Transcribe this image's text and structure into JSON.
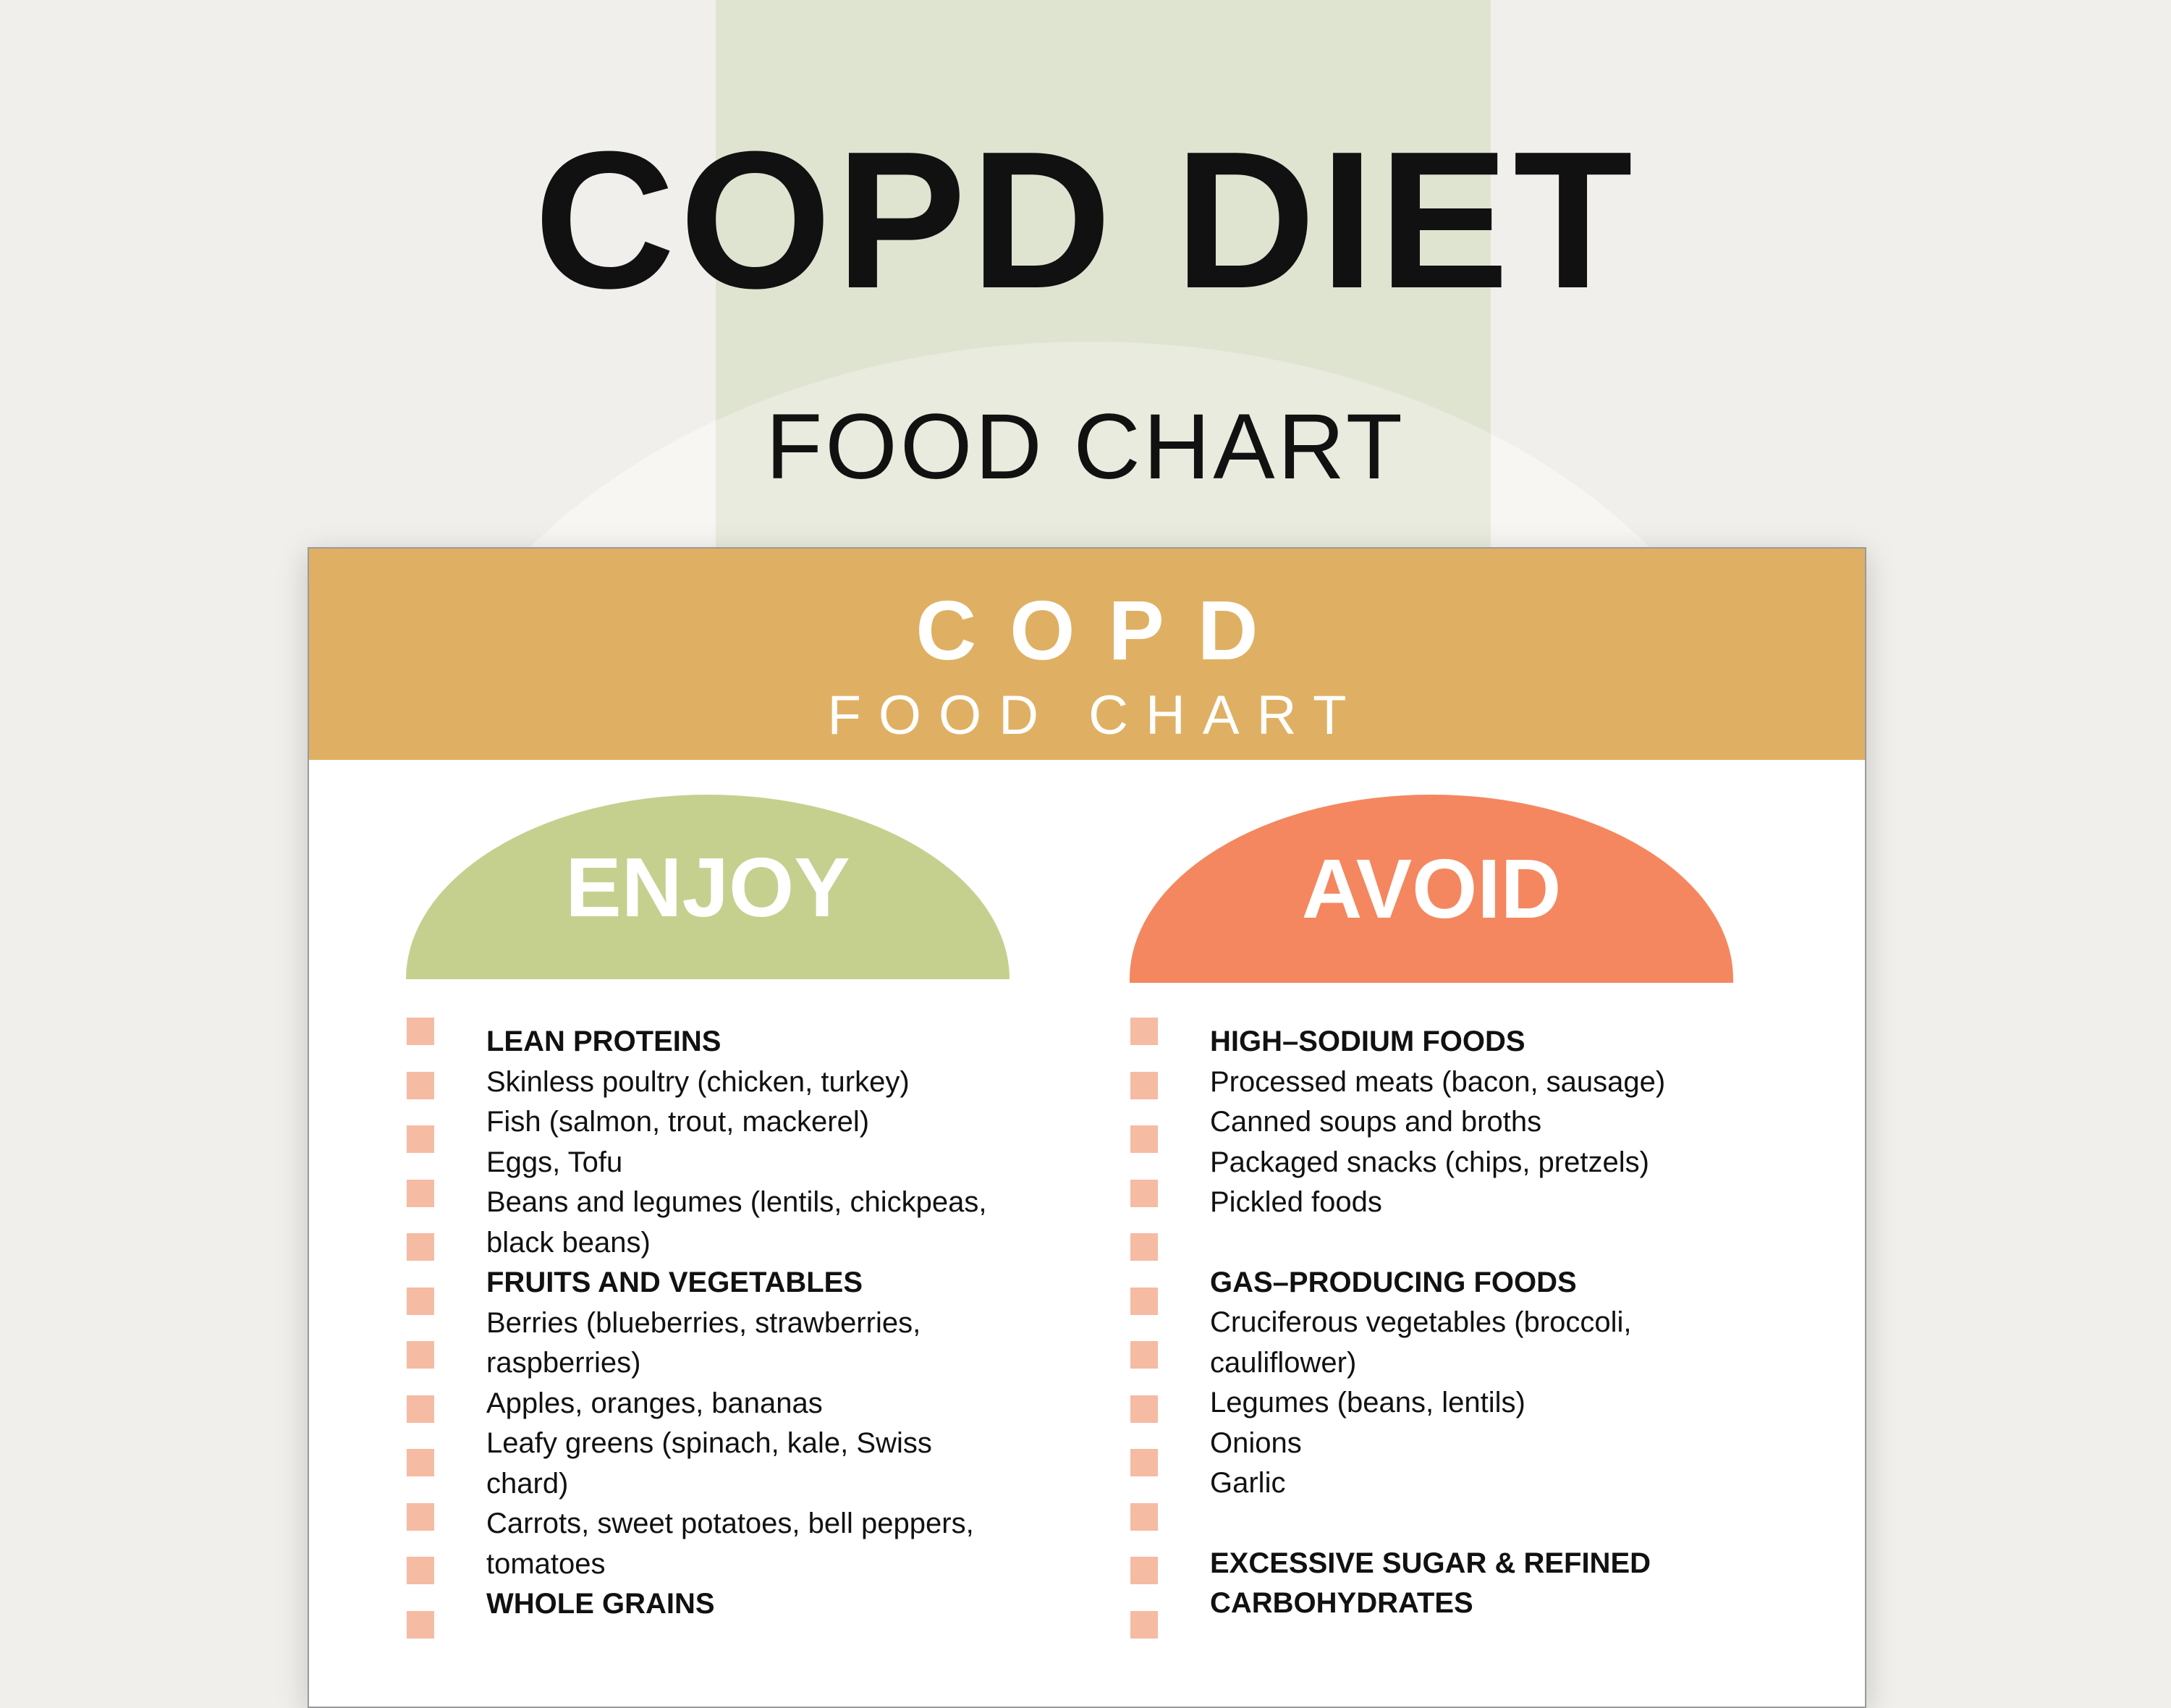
{
  "header": {
    "title": "COPD DIET",
    "subtitle": "FOOD CHART"
  },
  "card": {
    "title": "COPD",
    "subtitle": "FOOD CHART",
    "columns": [
      {
        "label": "ENJOY",
        "groups": [
          {
            "heading": "LEAN PROTEINS",
            "items": [
              "Skinless poultry (chicken, turkey)",
              "Fish (salmon, trout, mackerel)",
              "Eggs, Tofu",
              "Beans and legumes (lentils, chickpeas, black beans)"
            ]
          },
          {
            "heading": "FRUITS AND VEGETABLES",
            "items": [
              "Berries (blueberries, strawberries, raspberries)",
              "Apples, oranges, bananas",
              "Leafy greens (spinach, kale, Swiss chard)",
              "Carrots, sweet potatoes, bell peppers, tomatoes"
            ]
          },
          {
            "heading": "WHOLE GRAINS",
            "items": []
          }
        ]
      },
      {
        "label": "AVOID",
        "groups": [
          {
            "heading": "HIGH–SODIUM FOODS",
            "items": [
              "Processed meats (bacon, sausage)",
              "Canned soups and broths",
              "Packaged snacks (chips, pretzels)",
              "Pickled foods"
            ]
          },
          {
            "heading": "GAS–PRODUCING FOODS",
            "items": [
              "Cruciferous vegetables (broccoli, cauliflower)",
              "Legumes (beans, lentils)",
              "Onions",
              "Garlic"
            ]
          },
          {
            "heading": "EXCESSIVE SUGAR & REFINED CARBOHYDRATES",
            "items": []
          }
        ]
      }
    ]
  }
}
